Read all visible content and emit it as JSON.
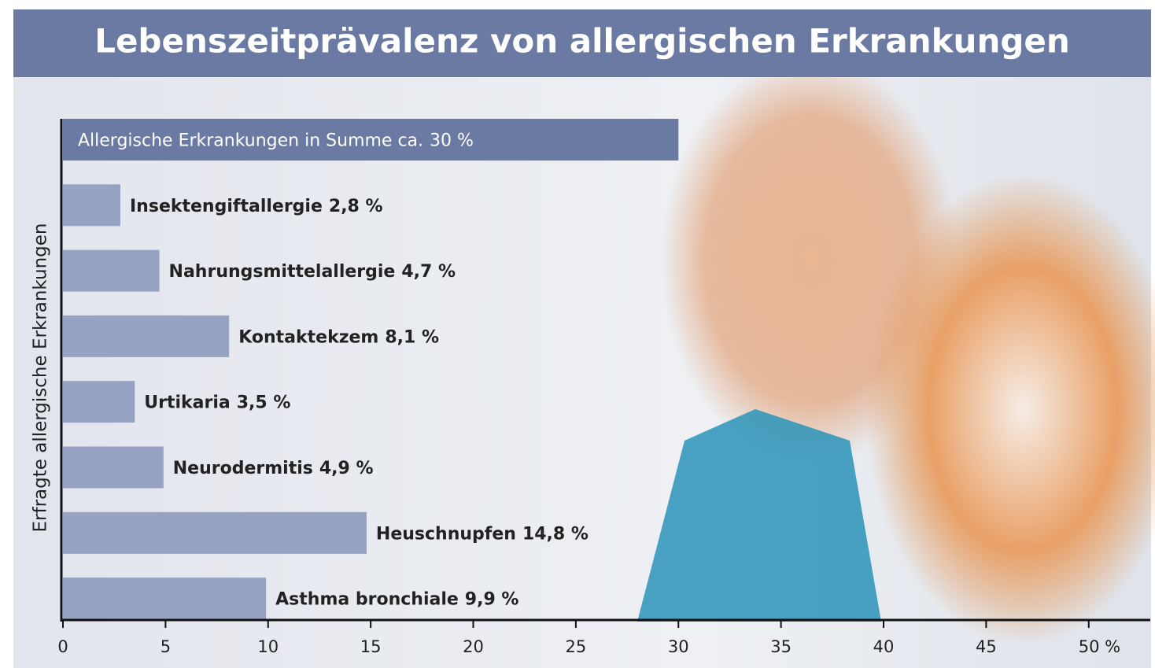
{
  "chart_data": {
    "type": "bar",
    "orientation": "horizontal",
    "title": "Lebenszeitprävalenz von allergischen Erkrankungen",
    "y_label": "Erfragte allergische Erkrankungen",
    "categories": [
      "Allergische Erkrankungen in Summe ca.",
      "Insektengiftallergie",
      "Nahrungsmittelallergie",
      "Kontaktekzem",
      "Urtikaria",
      "Neurodermitis",
      "Heuschnupfen",
      "Asthma bronchiale"
    ],
    "values": [
      30,
      2.8,
      4.7,
      8.1,
      3.5,
      4.9,
      14.8,
      9.9
    ],
    "value_labels": [
      "30 %",
      "2,8 %",
      "4,7 %",
      "8,1 %",
      "3,5 %",
      "4,9 %",
      "14,8 %",
      "9,9 %"
    ],
    "colors": [
      "#6a7aa3",
      "#97a3c2",
      "#97a3c2",
      "#97a3c2",
      "#97a3c2",
      "#97a3c2",
      "#97a3c2",
      "#97a3c2"
    ],
    "xlim": [
      0,
      53
    ],
    "xticks": [
      0,
      5,
      10,
      15,
      20,
      25,
      30,
      35,
      40,
      45,
      {
        "value": 50,
        "label": "50 %"
      }
    ]
  }
}
